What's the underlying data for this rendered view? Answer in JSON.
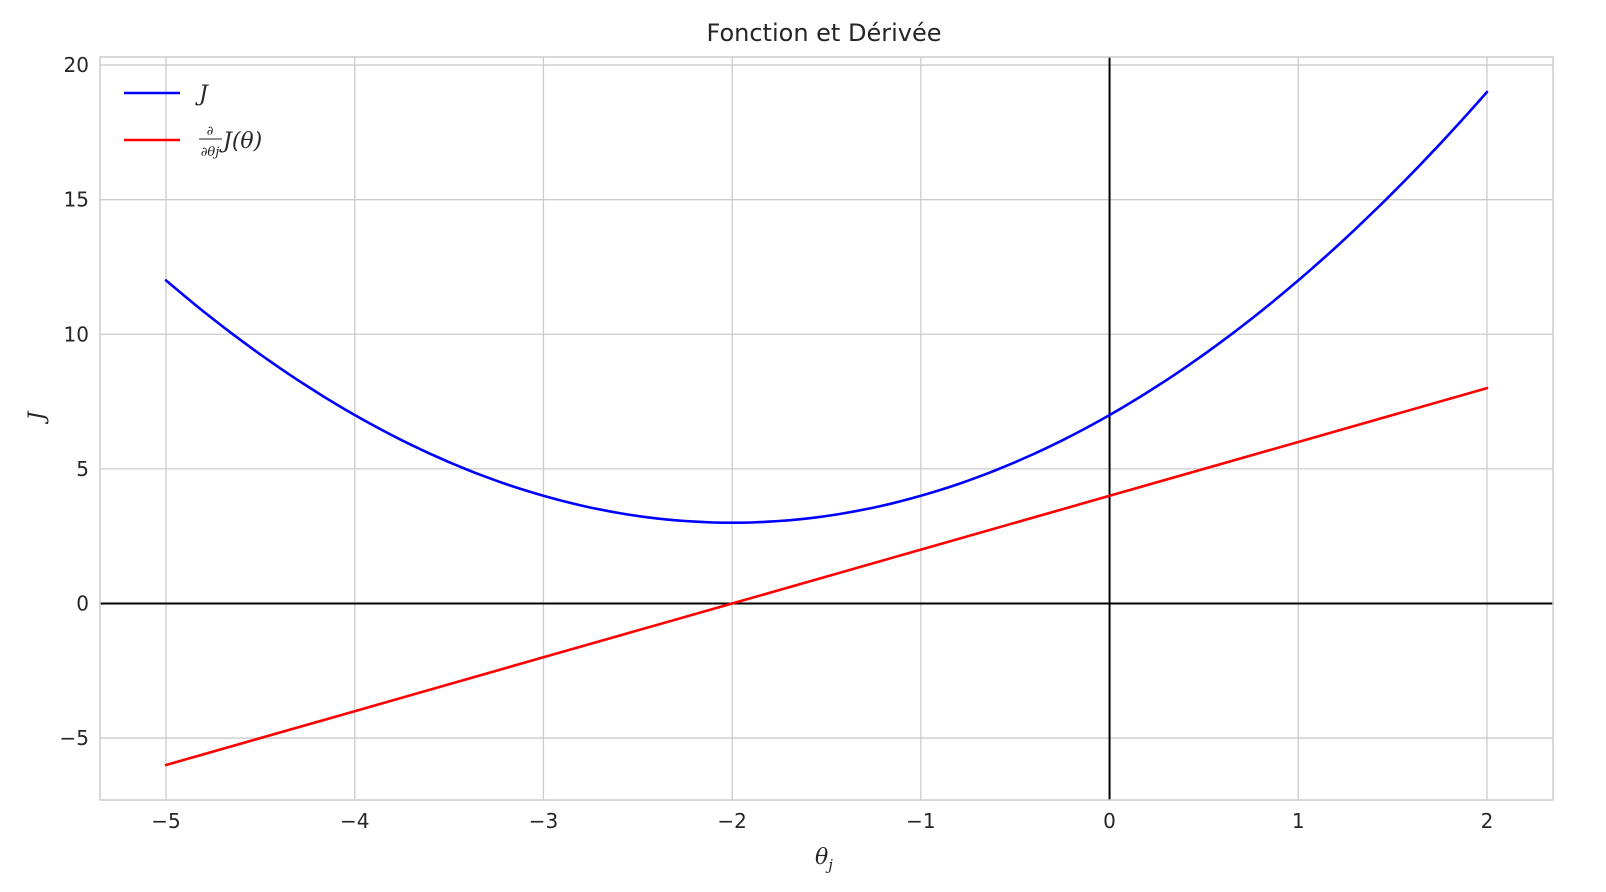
{
  "chart_data": {
    "type": "line",
    "title": "Fonction et Dérivée",
    "xlabel": "θ",
    "xlabel_sub": "j",
    "ylabel": "J",
    "xlim": [
      -5.35,
      2.35
    ],
    "ylim": [
      -7.3,
      20.3
    ],
    "xticks": [
      -5,
      -4,
      -3,
      -2,
      -1,
      0,
      1,
      2
    ],
    "xtick_labels": [
      "−5",
      "−4",
      "−3",
      "−2",
      "−1",
      "0",
      "1",
      "2"
    ],
    "yticks": [
      -5,
      0,
      5,
      10,
      15,
      20
    ],
    "ytick_labels": [
      "−5",
      "0",
      "5",
      "10",
      "15",
      "20"
    ],
    "grid": true,
    "reference_lines": {
      "y": 0,
      "x": 0,
      "color": "#000000"
    },
    "series": [
      {
        "name": "J",
        "color": "#0000ff",
        "x": [
          -5,
          -4.5,
          -4,
          -3.5,
          -3,
          -2.5,
          -2,
          -1.5,
          -1,
          -0.5,
          0,
          0.5,
          1,
          1.5,
          2
        ],
        "y": [
          12,
          9.25,
          7,
          5.25,
          4,
          3.25,
          3,
          3.25,
          4,
          5.25,
          7,
          9.25,
          12,
          15.25,
          19
        ]
      },
      {
        "name": "∂/∂θj J(θ)",
        "color": "#ff0000",
        "x": [
          -5,
          -4,
          -3,
          -2,
          -1,
          0,
          1,
          2
        ],
        "y": [
          -6,
          -4,
          -2,
          0,
          2,
          4,
          6,
          8
        ]
      }
    ],
    "legend": {
      "placement": "top-left",
      "entries": [
        {
          "label": "J",
          "color": "#0000ff"
        },
        {
          "num": "∂",
          "den": "∂θj",
          "tail": "J(θ)",
          "color": "#ff0000"
        }
      ]
    }
  }
}
